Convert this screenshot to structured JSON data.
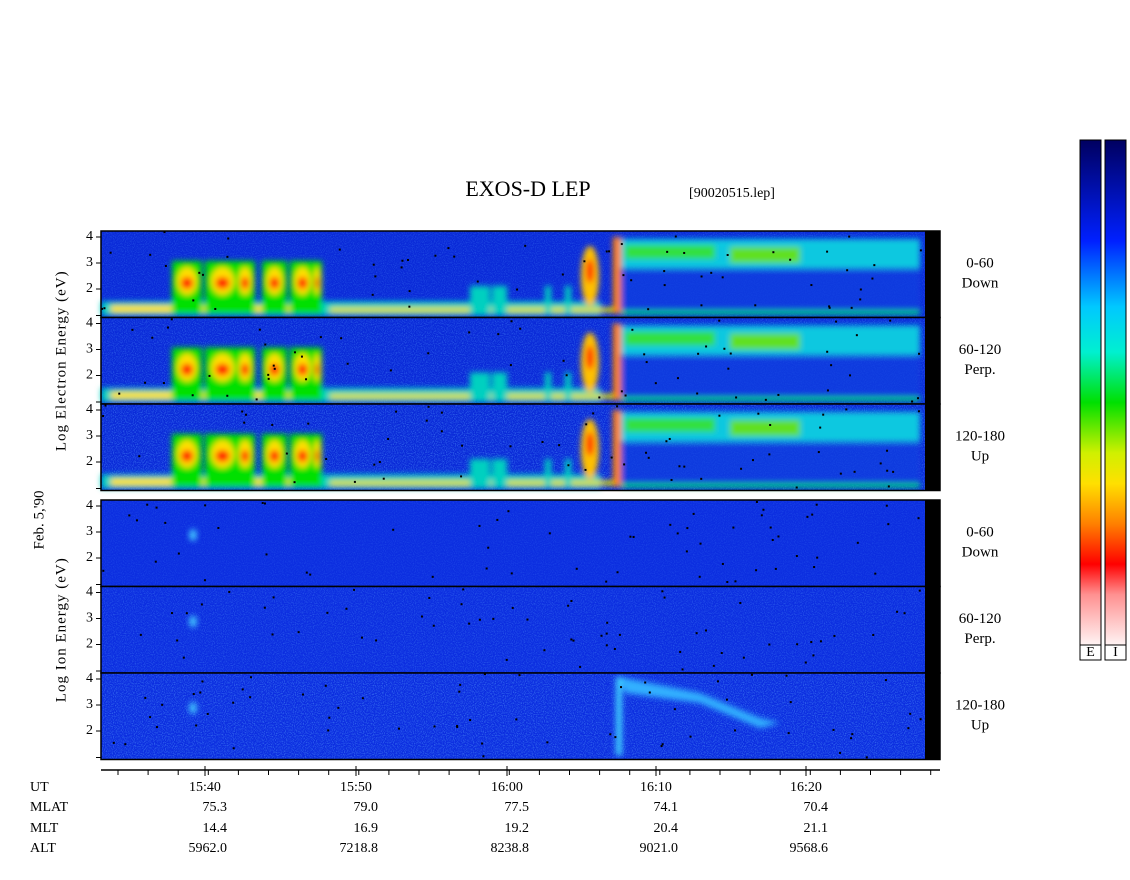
{
  "title": "EXOS-D LEP",
  "file": "[90020515.lep]",
  "date": "Feb. 5,'90",
  "yticks": [
    4,
    3,
    2
  ],
  "groups": [
    {
      "ylabel": "Log Electron Energy (eV)",
      "panels": [
        {
          "range": "0-60",
          "direction": "Down"
        },
        {
          "range": "60-120",
          "direction": "Perp."
        },
        {
          "range": "120-180",
          "direction": "Up"
        }
      ]
    },
    {
      "ylabel": "Log Ion Energy (eV)",
      "panels": [
        {
          "range": "0-60",
          "direction": "Down"
        },
        {
          "range": "60-120",
          "direction": "Perp."
        },
        {
          "range": "120-180",
          "direction": "Up"
        }
      ]
    }
  ],
  "ephemeris": [
    {
      "name": "UT",
      "values": [
        "15:40",
        "15:50",
        "16:00",
        "16:10",
        "16:20"
      ]
    },
    {
      "name": "MLAT",
      "values": [
        "75.3",
        "79.0",
        "77.5",
        "74.1",
        "70.4"
      ]
    },
    {
      "name": "MLT",
      "values": [
        "14.4",
        "16.9",
        "19.2",
        "20.4",
        "21.1"
      ]
    },
    {
      "name": "ALT",
      "values": [
        "5962.0",
        "7218.8",
        "8238.8",
        "9021.0",
        "9568.6"
      ]
    }
  ],
  "colorbar_labels": [
    "E",
    "I"
  ]
}
